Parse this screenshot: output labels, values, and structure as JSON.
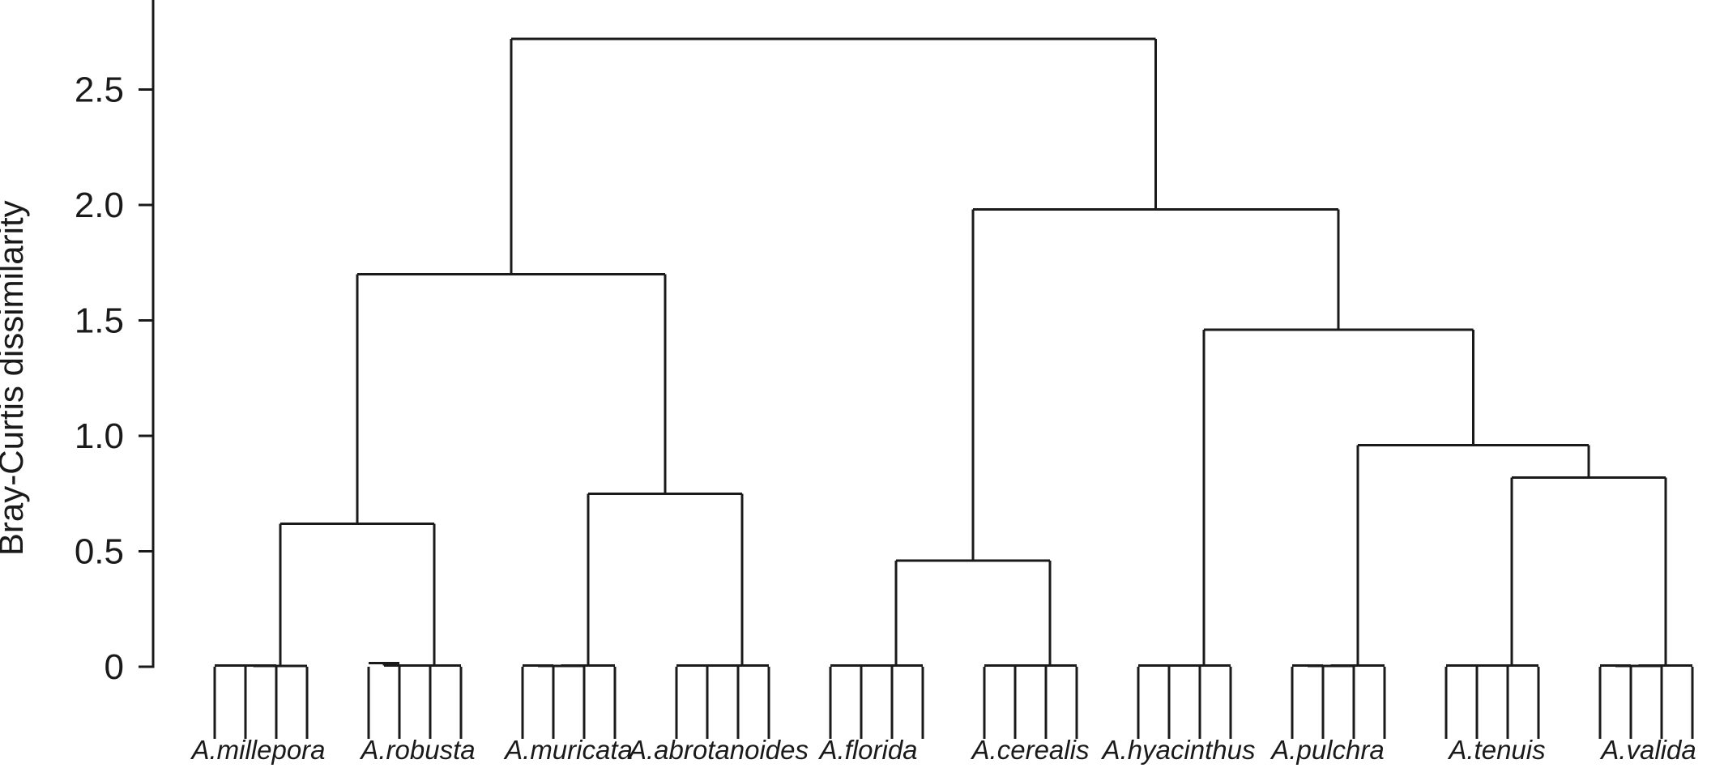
{
  "chart_data": {
    "type": "dendrogram",
    "title": "",
    "xlabel": "",
    "ylabel": "Bray-Curtis dissimilarity",
    "ylim": [
      0,
      2.75
    ],
    "yticks": [
      0,
      0.5,
      1.0,
      1.5,
      2.0,
      2.5
    ],
    "ytick_labels": [
      "0",
      "0.5",
      "1.0",
      "1.5",
      "2.0",
      "2.5"
    ],
    "grid": false,
    "leaves_per_group": 4,
    "groups": [
      {
        "label": "A.millepora",
        "leaf_heights": [
          0.005,
          0.005,
          0.003
        ]
      },
      {
        "label": "A.robusta",
        "leaf_heights": [
          0.015,
          0.005,
          0.005
        ]
      },
      {
        "label": "A.muricata",
        "leaf_heights": [
          0.005,
          0.003,
          0.005
        ]
      },
      {
        "label": "A.abrotanoides",
        "leaf_heights": [
          0.006,
          0.005,
          0.005
        ]
      },
      {
        "label": "A.florida",
        "leaf_heights": [
          0.005,
          0.006,
          0.005
        ]
      },
      {
        "label": "A.cerealis",
        "leaf_heights": [
          0.005,
          0.005,
          0.006
        ]
      },
      {
        "label": "A.hyacinthus",
        "leaf_heights": [
          0.006,
          0.005,
          0.006
        ]
      },
      {
        "label": "A.pulchra",
        "leaf_heights": [
          0.006,
          0.004,
          0.005
        ]
      },
      {
        "label": "A.tenuis",
        "leaf_heights": [
          0.006,
          0.006,
          0.005
        ]
      },
      {
        "label": "A.valida",
        "leaf_heights": [
          0.006,
          0.004,
          0.006
        ]
      }
    ],
    "merges": [
      {
        "left": "A.millepora",
        "right": "A.robusta",
        "height": 0.62
      },
      {
        "left": "A.muricata",
        "right": "A.abrotanoides",
        "height": 0.75
      },
      {
        "left": "A.florida",
        "right": "A.cerealis",
        "height": 0.46
      },
      {
        "left": "A.tenuis",
        "right": "A.valida",
        "height": 0.82
      },
      {
        "left": "A.pulchra",
        "right": "A.tenuis + A.valida",
        "height": 0.96
      },
      {
        "left": "A.hyacinthus",
        "right": "A.pulchra + A.tenuis + A.valida",
        "height": 1.46
      },
      {
        "left": "A.millepora + A.robusta",
        "right": "A.muricata + A.abrotanoides",
        "height": 1.7
      },
      {
        "left": "A.florida + A.cerealis",
        "right": "A.hyacinthus + A.pulchra + A.tenuis + A.valida",
        "height": 1.98
      },
      {
        "left": "left cluster",
        "right": "right cluster",
        "height": 2.72
      }
    ]
  }
}
